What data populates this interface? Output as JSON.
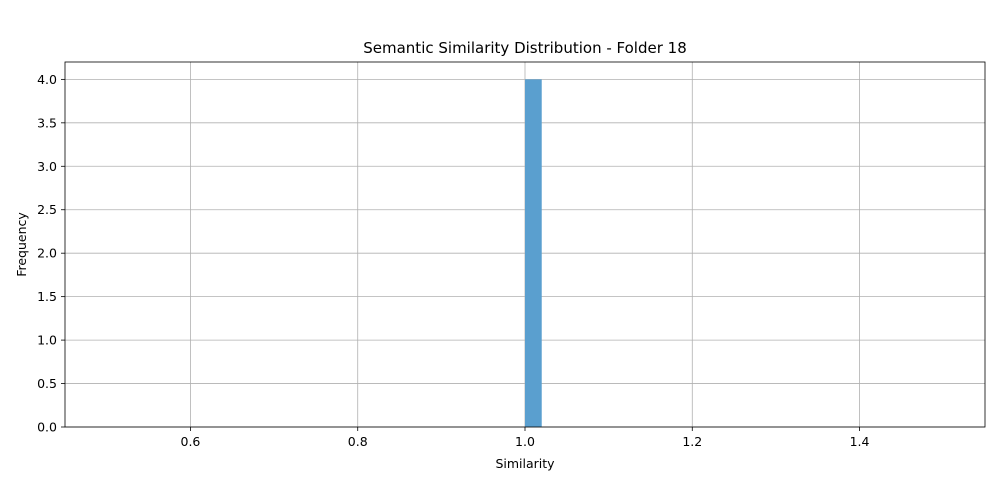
{
  "chart_data": {
    "type": "bar",
    "title": "Semantic Similarity Distribution - Folder 18",
    "xlabel": "Similarity",
    "ylabel": "Frequency",
    "xlim": [
      0.45,
      1.55
    ],
    "ylim": [
      0,
      4.2
    ],
    "x_ticks": [
      0.6,
      0.8,
      1.0,
      1.2,
      1.4
    ],
    "x_tick_labels": [
      "0.6",
      "0.8",
      "1.0",
      "1.2",
      "1.4"
    ],
    "y_ticks": [
      0.0,
      0.5,
      1.0,
      1.5,
      2.0,
      2.5,
      3.0,
      3.5,
      4.0
    ],
    "y_tick_labels": [
      "0.0",
      "0.5",
      "1.0",
      "1.5",
      "2.0",
      "2.5",
      "3.0",
      "3.5",
      "4.0"
    ],
    "bins": [
      {
        "x0": 1.0,
        "x1": 1.02,
        "count": 4
      }
    ],
    "grid": true,
    "colors": {
      "bar": "#5a9fcf",
      "grid": "#b0b0b0",
      "axis": "#000000"
    }
  }
}
